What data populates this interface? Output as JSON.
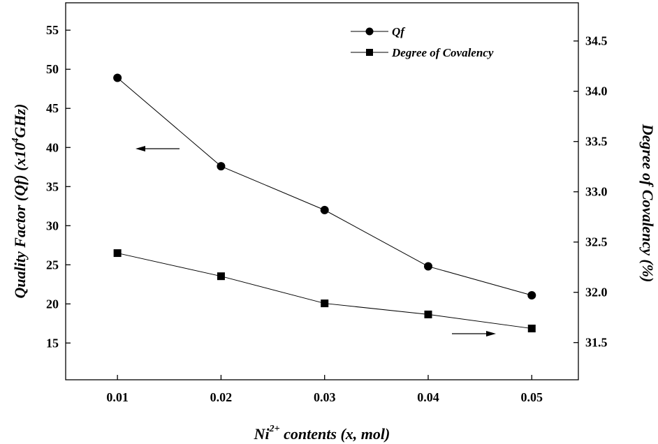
{
  "chart_data": {
    "type": "line",
    "xlabel_main": "Ni",
    "xlabel_sup": "2+",
    "xlabel_rest": " contents (x, mol)",
    "ylabel_left_a": "Quality Factor (Qf) (x10",
    "ylabel_left_sup": "4",
    "ylabel_left_b": "GHz)",
    "ylabel_right": "Degree of Covalency (%)",
    "x": [
      0.01,
      0.02,
      0.03,
      0.04,
      0.05
    ],
    "x_tick_labels": [
      "0.01",
      "0.02",
      "0.03",
      "0.04",
      "0.05"
    ],
    "xlim": [
      0.005,
      0.0545
    ],
    "y_left": {
      "lim": [
        10.3,
        58.5
      ],
      "ticks": [
        15,
        20,
        25,
        30,
        35,
        40,
        45,
        50,
        55
      ],
      "tick_labels": [
        "15",
        "20",
        "25",
        "30",
        "35",
        "40",
        "45",
        "50",
        "55"
      ]
    },
    "y_right": {
      "lim": [
        31.13,
        34.88
      ],
      "ticks": [
        31.5,
        32.0,
        32.5,
        33.0,
        33.5,
        34.0,
        34.5
      ],
      "tick_labels": [
        "31.5",
        "32.0",
        "32.5",
        "33.0",
        "33.5",
        "34.0",
        "34.5"
      ]
    },
    "series": [
      {
        "name": "Qf",
        "axis": "left",
        "marker": "circle",
        "values": [
          48.9,
          37.6,
          32.0,
          24.8,
          21.1
        ]
      },
      {
        "name": "Degree of Covalency",
        "axis": "right",
        "marker": "square",
        "values": [
          32.39,
          32.16,
          31.89,
          31.78,
          31.64
        ]
      }
    ],
    "legend_position": "top-right",
    "annotations": [
      {
        "type": "arrow",
        "direction": "left",
        "target_axis": "left"
      },
      {
        "type": "arrow",
        "direction": "right",
        "target_axis": "right"
      }
    ],
    "grid": false
  }
}
